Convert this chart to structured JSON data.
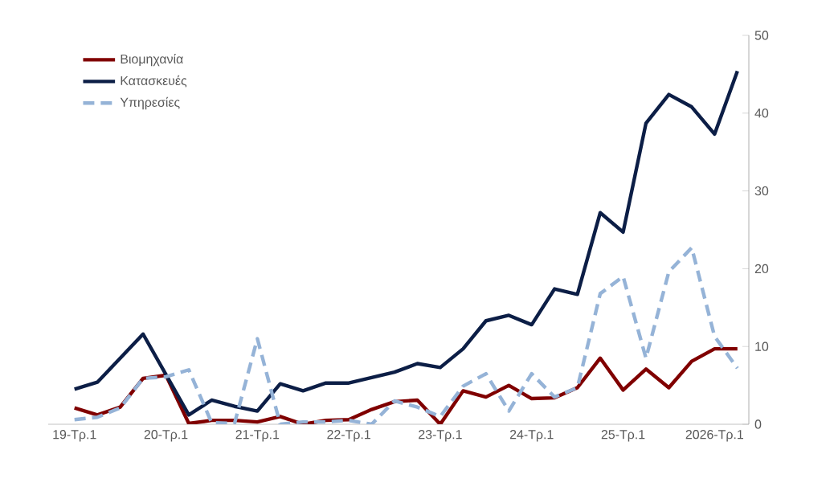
{
  "chart_data": {
    "type": "line",
    "categories": [
      "19-Τρ.1",
      null,
      null,
      null,
      "20-Τρ.1",
      null,
      null,
      null,
      "21-Τρ.1",
      null,
      null,
      null,
      "22-Τρ.1",
      null,
      null,
      null,
      "23-Τρ.1",
      null,
      null,
      null,
      "24-Τρ.1",
      null,
      null,
      null,
      "25-Τρ.1",
      null,
      null,
      null,
      "2026-Τρ.1",
      null
    ],
    "series": [
      {
        "name": "Βιομηχανία",
        "color": "#800000",
        "line_style": "solid",
        "values": [
          2.1,
          1.2,
          2.2,
          5.9,
          6.3,
          0.1,
          0.5,
          0.5,
          0.3,
          1.0,
          0,
          0.5,
          0.6,
          1.9,
          2.9,
          3.1,
          0,
          4.3,
          3.5,
          5.0,
          3.3,
          3.4,
          4.7,
          8.5,
          4.4,
          7.1,
          4.7,
          8.1,
          9.7,
          9.7
        ]
      },
      {
        "name": "Κατασκευές",
        "color": "#0c1e46",
        "line_style": "solid",
        "values": [
          4.5,
          5.4,
          8.5,
          11.6,
          6.4,
          1.2,
          3.1,
          2.3,
          1.7,
          5.2,
          4.3,
          5.3,
          5.3,
          6.0,
          6.7,
          7.8,
          7.3,
          9.7,
          13.3,
          14.0,
          12.8,
          17.4,
          16.7,
          27.2,
          24.7,
          38.7,
          42.4,
          40.8,
          37.3,
          45.4
        ]
      },
      {
        "name": "Υπηρεσίες",
        "color": "#95b3d7",
        "line_style": "dashed",
        "values": [
          0.6,
          0.9,
          2.1,
          5.9,
          6.1,
          7.0,
          0.2,
          0.1,
          11.0,
          0,
          0.3,
          0.3,
          0.5,
          0,
          3.0,
          2.2,
          1.0,
          4.9,
          6.5,
          1.7,
          6.5,
          3.5,
          4.7,
          16.8,
          19.0,
          8.5,
          19.6,
          22.7,
          11.3,
          7.2
        ]
      }
    ],
    "ylim": [
      0,
      50
    ],
    "yticks": [
      0,
      10,
      20,
      30,
      40,
      50
    ],
    "grid": false,
    "legend": "top left",
    "marker": "none"
  }
}
